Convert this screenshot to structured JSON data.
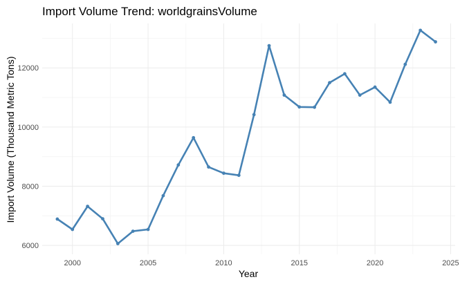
{
  "chart_data": {
    "type": "line",
    "title": "Import Volume Trend: worldgrainsVolume",
    "xlabel": "Year",
    "ylabel": "Import Volume (Thousand Metric Tons)",
    "x": [
      1999,
      2000,
      2001,
      2002,
      2003,
      2004,
      2005,
      2006,
      2007,
      2008,
      2009,
      2010,
      2011,
      2012,
      2013,
      2014,
      2015,
      2016,
      2017,
      2018,
      2019,
      2020,
      2021,
      2022,
      2023,
      2024
    ],
    "series": [
      {
        "values": [
          6890,
          6540,
          7320,
          6900,
          6060,
          6480,
          6540,
          7680,
          8720,
          9640,
          8650,
          8440,
          8370,
          10420,
          12750,
          11080,
          10680,
          10670,
          11500,
          11800,
          11080,
          11350,
          10840,
          12120,
          13270,
          12880
        ]
      }
    ],
    "xlim": [
      1998.0,
      2025.3
    ],
    "ylim": [
      5700,
      13500
    ],
    "x_ticks": [
      "2000",
      "2005",
      "2010",
      "2015",
      "2020",
      "2025"
    ],
    "y_ticks": [
      "6000",
      "8000",
      "10000",
      "12000"
    ],
    "grid": true,
    "colors": {
      "line": "#4682b4",
      "grid": "#ebebeb",
      "background": "#ffffff"
    }
  }
}
